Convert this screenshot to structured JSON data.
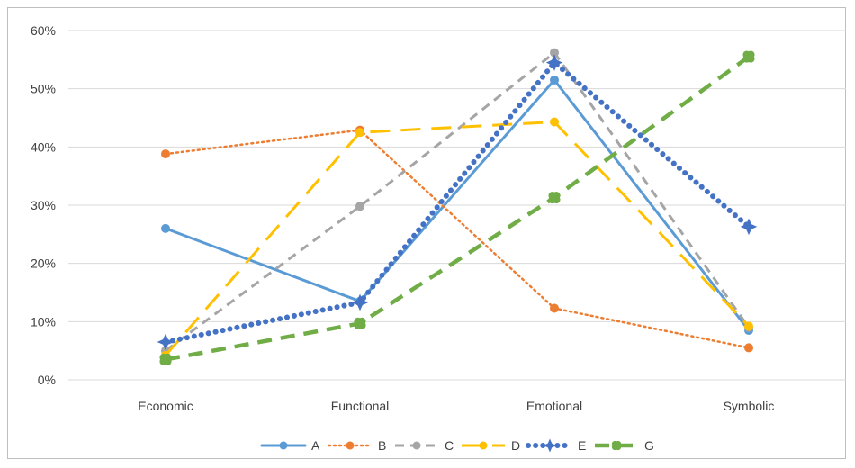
{
  "chart_data": {
    "type": "line",
    "title": "",
    "xlabel": "",
    "ylabel": "",
    "categories": [
      "Economic",
      "Functional",
      "Emotional",
      "Symbolic"
    ],
    "y_ticks": [
      "0%",
      "10%",
      "20%",
      "30%",
      "40%",
      "50%",
      "60%"
    ],
    "ylim": [
      0,
      60
    ],
    "grid": true,
    "legend_position": "bottom",
    "series": [
      {
        "name": "A",
        "values": [
          26,
          13.5,
          51.5,
          8.5
        ],
        "color": "#5b9bd5",
        "line_style": "solid",
        "marker": "circle"
      },
      {
        "name": "B",
        "values": [
          38.8,
          42.9,
          12.3,
          5.5
        ],
        "color": "#ed7d31",
        "line_style": "dotted",
        "marker": "circle"
      },
      {
        "name": "C",
        "values": [
          5,
          29.8,
          56.2,
          9
        ],
        "color": "#a5a5a5",
        "line_style": "dashed",
        "marker": "circle"
      },
      {
        "name": "D",
        "values": [
          4.2,
          42.5,
          44.3,
          9.2
        ],
        "color": "#ffc000",
        "line_style": "long-dash",
        "marker": "circle"
      },
      {
        "name": "E",
        "values": [
          6.5,
          13.3,
          54.5,
          26.3
        ],
        "color": "#4472c4",
        "line_style": "round-dot",
        "marker": "star"
      },
      {
        "name": "G",
        "values": [
          3.5,
          9.7,
          31.3,
          55.5
        ],
        "color": "#70ad47",
        "line_style": "dash-heavy",
        "marker": "flower"
      }
    ]
  }
}
